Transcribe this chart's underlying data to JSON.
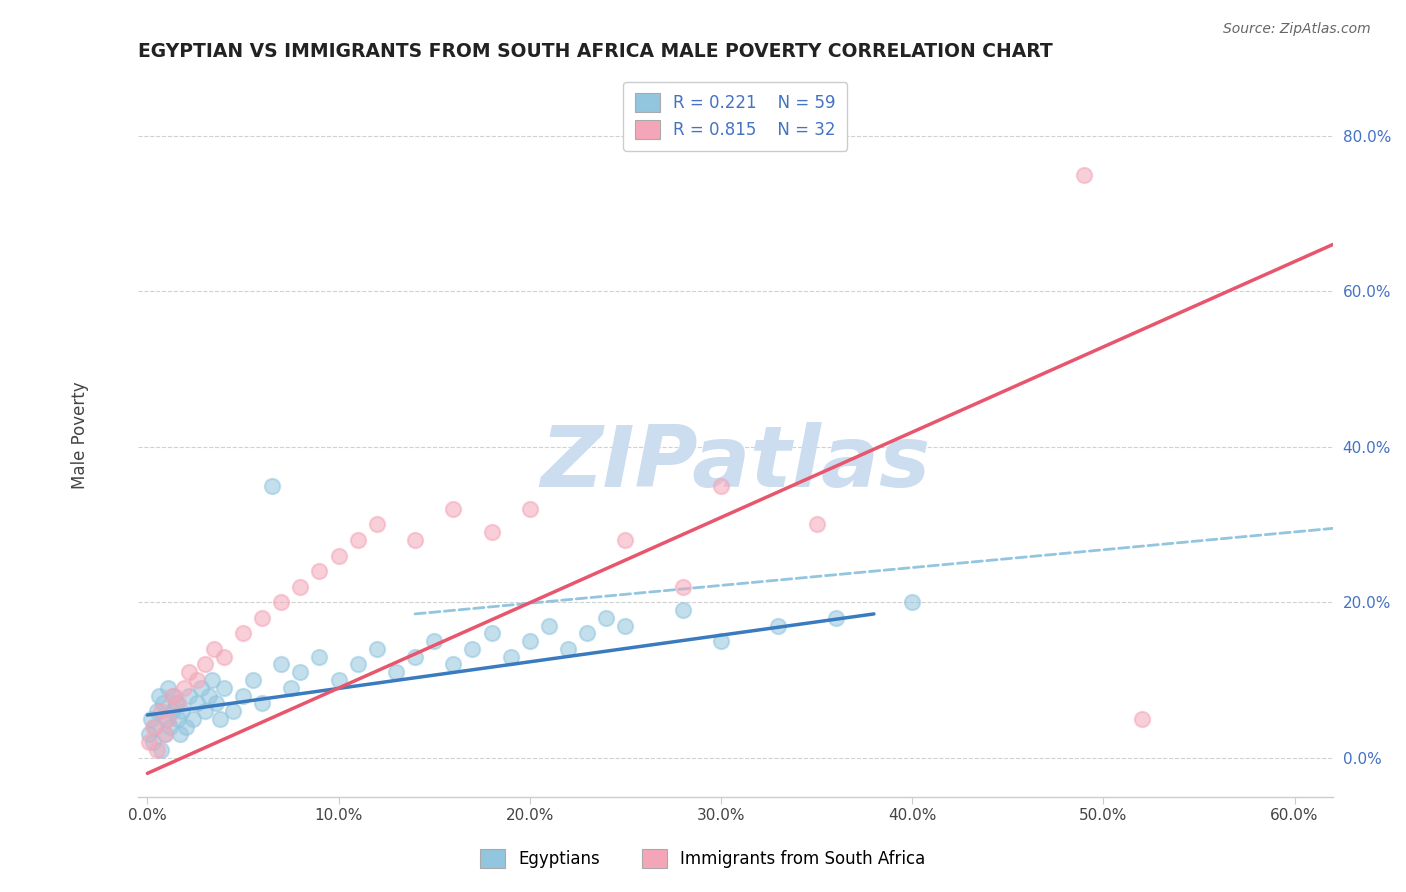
{
  "title": "EGYPTIAN VS IMMIGRANTS FROM SOUTH AFRICA MALE POVERTY CORRELATION CHART",
  "source": "Source: ZipAtlas.com",
  "ylabel": "Male Poverty",
  "xlim": [
    -0.005,
    0.62
  ],
  "ylim": [
    -0.05,
    0.88
  ],
  "xticks": [
    0.0,
    0.1,
    0.2,
    0.3,
    0.4,
    0.5,
    0.6
  ],
  "xticklabels": [
    "0.0%",
    "10.0%",
    "20.0%",
    "30.0%",
    "40.0%",
    "50.0%",
    "60.0%"
  ],
  "ytick_positions": [
    0.0,
    0.2,
    0.4,
    0.6,
    0.8
  ],
  "ytick_labels": [
    "0.0%",
    "20.0%",
    "40.0%",
    "60.0%",
    "80.0%"
  ],
  "legend_labels": [
    "Egyptians",
    "Immigrants from South Africa"
  ],
  "legend_R": [
    "0.221",
    "0.815"
  ],
  "legend_N": [
    "59",
    "32"
  ],
  "blue_scatter_color": "#92c5de",
  "pink_scatter_color": "#f4a6b8",
  "blue_line_color": "#3a7bbf",
  "pink_line_color": "#e8566e",
  "dashed_line_color": "#92c5de",
  "watermark": "ZIPatlas",
  "watermark_color": "#ccddf0",
  "blue_legend_color": "#92c5de",
  "pink_legend_color": "#f4a6b8",
  "legend_text_color": "#4472c4",
  "ytick_color": "#4472c4",
  "title_color": "#222222",
  "source_color": "#666666",
  "grid_color": "#cccccc",
  "spine_color": "#cccccc",
  "egyptians_x": [
    0.001,
    0.002,
    0.003,
    0.004,
    0.005,
    0.006,
    0.007,
    0.008,
    0.009,
    0.01,
    0.011,
    0.012,
    0.013,
    0.014,
    0.015,
    0.016,
    0.017,
    0.018,
    0.02,
    0.022,
    0.024,
    0.026,
    0.028,
    0.03,
    0.032,
    0.034,
    0.036,
    0.038,
    0.04,
    0.045,
    0.05,
    0.055,
    0.06,
    0.065,
    0.07,
    0.075,
    0.08,
    0.09,
    0.1,
    0.11,
    0.12,
    0.13,
    0.14,
    0.15,
    0.16,
    0.17,
    0.18,
    0.19,
    0.2,
    0.21,
    0.22,
    0.23,
    0.24,
    0.25,
    0.28,
    0.3,
    0.33,
    0.36,
    0.4
  ],
  "egyptians_y": [
    0.03,
    0.05,
    0.02,
    0.04,
    0.06,
    0.08,
    0.01,
    0.07,
    0.03,
    0.05,
    0.09,
    0.04,
    0.06,
    0.08,
    0.07,
    0.05,
    0.03,
    0.06,
    0.04,
    0.08,
    0.05,
    0.07,
    0.09,
    0.06,
    0.08,
    0.1,
    0.07,
    0.05,
    0.09,
    0.06,
    0.08,
    0.1,
    0.07,
    0.35,
    0.12,
    0.09,
    0.11,
    0.13,
    0.1,
    0.12,
    0.14,
    0.11,
    0.13,
    0.15,
    0.12,
    0.14,
    0.16,
    0.13,
    0.15,
    0.17,
    0.14,
    0.16,
    0.18,
    0.17,
    0.19,
    0.15,
    0.17,
    0.18,
    0.2
  ],
  "sa_x": [
    0.001,
    0.003,
    0.005,
    0.007,
    0.009,
    0.011,
    0.013,
    0.016,
    0.019,
    0.022,
    0.026,
    0.03,
    0.035,
    0.04,
    0.05,
    0.06,
    0.07,
    0.08,
    0.09,
    0.1,
    0.11,
    0.12,
    0.14,
    0.16,
    0.18,
    0.2,
    0.25,
    0.28,
    0.3,
    0.35,
    0.49,
    0.52
  ],
  "sa_y": [
    0.02,
    0.04,
    0.01,
    0.06,
    0.03,
    0.05,
    0.08,
    0.07,
    0.09,
    0.11,
    0.1,
    0.12,
    0.14,
    0.13,
    0.16,
    0.18,
    0.2,
    0.22,
    0.24,
    0.26,
    0.28,
    0.3,
    0.28,
    0.32,
    0.29,
    0.32,
    0.28,
    0.22,
    0.35,
    0.3,
    0.75,
    0.05
  ],
  "blue_line_x0": 0.0,
  "blue_line_y0": 0.055,
  "blue_line_x1": 0.38,
  "blue_line_y1": 0.185,
  "dashed_line_x0": 0.14,
  "dashed_line_y0": 0.185,
  "dashed_line_x1": 0.62,
  "dashed_line_y1": 0.295,
  "pink_line_x0": 0.0,
  "pink_line_y0": -0.02,
  "pink_line_x1": 0.62,
  "pink_line_y1": 0.66
}
